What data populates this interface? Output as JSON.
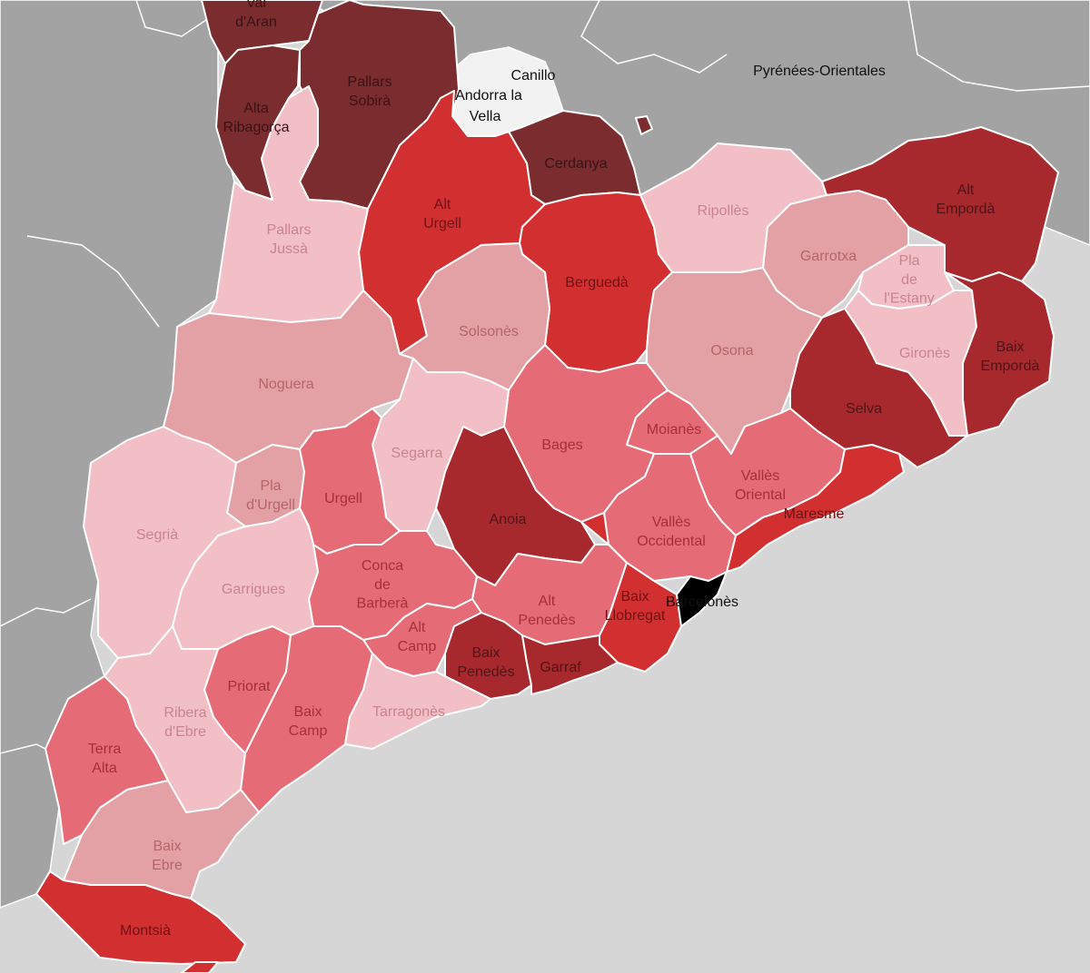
{
  "map": {
    "colors": {
      "sea": "#d6d6d6",
      "land_other": "#a3a3a3",
      "andorra": "#f2f2f2",
      "border": "#ffffff"
    },
    "external_labels": [
      {
        "id": "canillo",
        "text": "Canillo"
      },
      {
        "id": "andorra-la",
        "text": "Andorra la"
      },
      {
        "id": "vella",
        "text": "Vella"
      },
      {
        "id": "pyrenees-orientales",
        "text": "Pyrénées-Orientales"
      },
      {
        "id": "barcelones",
        "text": "Barcelonès"
      }
    ],
    "comarques": [
      {
        "id": "val-daran",
        "lines": [
          "Val",
          "d'Aran"
        ],
        "color": "#7a2c2e",
        "text_color": "#3a1214"
      },
      {
        "id": "alta-ribagorca",
        "lines": [
          "Alta",
          "Ribagorça"
        ],
        "color": "#7a2c2e",
        "text_color": "#3a1214"
      },
      {
        "id": "pallars-sobira",
        "lines": [
          "Pallars",
          "Sobirà"
        ],
        "color": "#7a2c2e",
        "text_color": "#3a1214"
      },
      {
        "id": "cerdanya",
        "lines": [
          "Cerdanya"
        ],
        "color": "#7a2c2e",
        "text_color": "#3a1214"
      },
      {
        "id": "alt-urgell",
        "lines": [
          "Alt",
          "Urgell"
        ],
        "color": "#d22f31",
        "text_color": "#6e1214"
      },
      {
        "id": "pallars-jussa",
        "lines": [
          "Pallars",
          "Jussà"
        ],
        "color": "#f2bfc6",
        "text_color": "#c9848d"
      },
      {
        "id": "ripolles",
        "lines": [
          "Ripollès"
        ],
        "color": "#f2bfc6",
        "text_color": "#c9848d"
      },
      {
        "id": "alt-emporda",
        "lines": [
          "Alt",
          "Empordà"
        ],
        "color": "#a8292d",
        "text_color": "#4e1416"
      },
      {
        "id": "bergueda",
        "lines": [
          "Berguedà"
        ],
        "color": "#d22f31",
        "text_color": "#6e1214"
      },
      {
        "id": "garrotxa",
        "lines": [
          "Garrotxa"
        ],
        "color": "#e3a1a6",
        "text_color": "#b6646b"
      },
      {
        "id": "pla-de-lestany",
        "lines": [
          "Pla",
          "de",
          "l'Estany"
        ],
        "color": "#f2bfc6",
        "text_color": "#c9848d"
      },
      {
        "id": "solsones",
        "lines": [
          "Solsonès"
        ],
        "color": "#e3a1a6",
        "text_color": "#b6646b"
      },
      {
        "id": "osona",
        "lines": [
          "Osona"
        ],
        "color": "#e3a1a6",
        "text_color": "#b6646b"
      },
      {
        "id": "girones",
        "lines": [
          "Gironès"
        ],
        "color": "#f2bfc6",
        "text_color": "#c9848d"
      },
      {
        "id": "baix-emporda",
        "lines": [
          "Baix",
          "Empordà"
        ],
        "color": "#a8292d",
        "text_color": "#4e1416"
      },
      {
        "id": "noguera",
        "lines": [
          "Noguera"
        ],
        "color": "#e3a1a6",
        "text_color": "#b6646b"
      },
      {
        "id": "selva",
        "lines": [
          "Selva"
        ],
        "color": "#a8292d",
        "text_color": "#4e1416"
      },
      {
        "id": "moianes",
        "lines": [
          "Moianès"
        ],
        "color": "#e56b76",
        "text_color": "#a3313b"
      },
      {
        "id": "bages",
        "lines": [
          "Bages"
        ],
        "color": "#e56b76",
        "text_color": "#a3313b"
      },
      {
        "id": "segarra",
        "lines": [
          "Segarra"
        ],
        "color": "#f2bfc6",
        "text_color": "#c9848d"
      },
      {
        "id": "valles-oriental",
        "lines": [
          "Vallès",
          "Oriental"
        ],
        "color": "#e56b76",
        "text_color": "#a3313b"
      },
      {
        "id": "pla-durgell",
        "lines": [
          "Pla",
          "d'Urgell"
        ],
        "color": "#e3a1a6",
        "text_color": "#b6646b"
      },
      {
        "id": "urgell",
        "lines": [
          "Urgell"
        ],
        "color": "#e56b76",
        "text_color": "#a3313b"
      },
      {
        "id": "anoia",
        "lines": [
          "Anoia"
        ],
        "color": "#a8292d",
        "text_color": "#4e1416"
      },
      {
        "id": "maresme",
        "lines": [
          "Maresme"
        ],
        "color": "#d22f31",
        "text_color": "#6e1214"
      },
      {
        "id": "valles-occidental",
        "lines": [
          "Vallès",
          "Occidental"
        ],
        "color": "#e56b76",
        "text_color": "#a3313b"
      },
      {
        "id": "segria",
        "lines": [
          "Segrià"
        ],
        "color": "#f2bfc6",
        "text_color": "#c9848d"
      },
      {
        "id": "conca-de-barbera",
        "lines": [
          "Conca",
          "de",
          "Barberà"
        ],
        "color": "#e56b76",
        "text_color": "#a3313b"
      },
      {
        "id": "garrigues",
        "lines": [
          "Garrigues"
        ],
        "color": "#f2bfc6",
        "text_color": "#c9848d"
      },
      {
        "id": "alt-penedes",
        "lines": [
          "Alt",
          "Penedès"
        ],
        "color": "#e56b76",
        "text_color": "#a3313b"
      },
      {
        "id": "baix-llobregat",
        "lines": [
          "Baix",
          "Llobregat"
        ],
        "color": "#d22f31",
        "text_color": "#6e1214"
      },
      {
        "id": "alt-camp",
        "lines": [
          "Alt",
          "Camp"
        ],
        "color": "#e56b76",
        "text_color": "#a3313b"
      },
      {
        "id": "baix-penedes",
        "lines": [
          "Baix",
          "Penedès"
        ],
        "color": "#a8292d",
        "text_color": "#4e1416"
      },
      {
        "id": "garraf",
        "lines": [
          "Garraf"
        ],
        "color": "#a8292d",
        "text_color": "#4e1416"
      },
      {
        "id": "priorat",
        "lines": [
          "Priorat"
        ],
        "color": "#e56b76",
        "text_color": "#a3313b"
      },
      {
        "id": "ribera-debre",
        "lines": [
          "Ribera",
          "d'Ebre"
        ],
        "color": "#f2bfc6",
        "text_color": "#c9848d"
      },
      {
        "id": "baix-camp",
        "lines": [
          "Baix",
          "Camp"
        ],
        "color": "#e56b76",
        "text_color": "#a3313b"
      },
      {
        "id": "tarragones",
        "lines": [
          "Tarragonès"
        ],
        "color": "#f2bfc6",
        "text_color": "#c9848d"
      },
      {
        "id": "terra-alta",
        "lines": [
          "Terra",
          "Alta"
        ],
        "color": "#e56b76",
        "text_color": "#a3313b"
      },
      {
        "id": "baix-ebre",
        "lines": [
          "Baix",
          "Ebre"
        ],
        "color": "#e3a1a6",
        "text_color": "#b6646b"
      },
      {
        "id": "montsia",
        "lines": [
          "Montsià"
        ],
        "color": "#d22f31",
        "text_color": "#6e1214"
      }
    ]
  }
}
